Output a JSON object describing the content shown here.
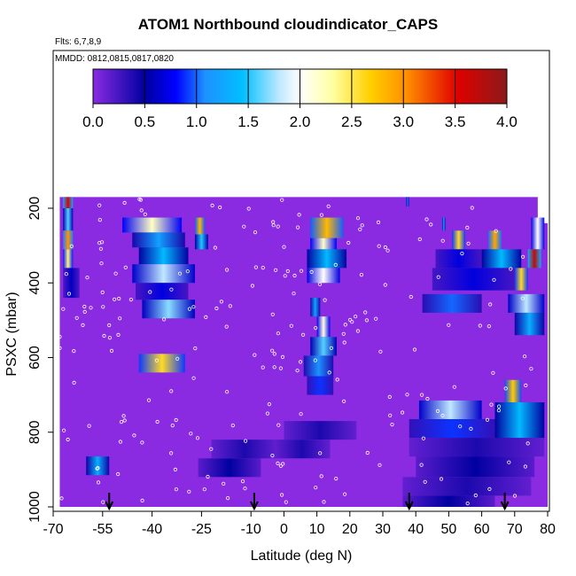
{
  "title": "ATOM1 Northbound cloudindicator_CAPS",
  "flights_note": "Flts: 6,7,8,9",
  "dates_note": "MMDD: 0812,0815,0817,0820",
  "chart_data": {
    "type": "heatmap",
    "title": "ATOM1 Northbound cloudindicator_CAPS",
    "xlabel": "Latitude (deg N)",
    "ylabel": "PSXC (mbar)",
    "xlim": [
      -70,
      80
    ],
    "ylim": [
      1000,
      100
    ],
    "x_ticks": [
      "-70",
      "-55",
      "-40",
      "-25",
      "-10",
      "0",
      "10",
      "20",
      "30",
      "40",
      "50",
      "60",
      "70",
      "80"
    ],
    "y_ticks": [
      "200",
      "400",
      "600",
      "800",
      "1000"
    ],
    "colorbar": {
      "min": 0.0,
      "max": 4.0,
      "ticks": [
        "0.0",
        "0.5",
        "1.0",
        "1.5",
        "2.0",
        "2.5",
        "3.0",
        "3.5",
        "4.0"
      ]
    },
    "arrow_latitudes": [
      -53,
      -9,
      38,
      67
    ],
    "background_value": 0.0,
    "cells": [
      {
        "lat": [
          -67,
          -64
        ],
        "p": [
          170,
          200
        ],
        "v": 3.6
      },
      {
        "lat": [
          -67,
          -64
        ],
        "p": [
          200,
          260
        ],
        "v": 1.6
      },
      {
        "lat": [
          -67,
          -64
        ],
        "p": [
          260,
          310
        ],
        "v": 3.0
      },
      {
        "lat": [
          -67,
          -64
        ],
        "p": [
          310,
          360
        ],
        "v": 2.4
      },
      {
        "lat": [
          -67,
          -62
        ],
        "p": [
          360,
          440
        ],
        "v": 0.6
      },
      {
        "lat": [
          -60,
          -53
        ],
        "p": [
          865,
          915
        ],
        "v": 1.3
      },
      {
        "lat": [
          -49,
          -31
        ],
        "p": [
          225,
          265
        ],
        "v": 2.2
      },
      {
        "lat": [
          -46,
          -30
        ],
        "p": [
          265,
          305
        ],
        "v": 1.2
      },
      {
        "lat": [
          -44,
          -29
        ],
        "p": [
          305,
          350
        ],
        "v": 1.4
      },
      {
        "lat": [
          -46,
          -27
        ],
        "p": [
          350,
          400
        ],
        "v": 1.8
      },
      {
        "lat": [
          -45,
          -29
        ],
        "p": [
          400,
          445
        ],
        "v": 0.7
      },
      {
        "lat": [
          -43,
          -27
        ],
        "p": [
          445,
          495
        ],
        "v": 1.7
      },
      {
        "lat": [
          -44,
          -30
        ],
        "p": [
          590,
          640
        ],
        "v": 2.6
      },
      {
        "lat": [
          -27,
          -24
        ],
        "p": [
          225,
          270
        ],
        "v": 2.8
      },
      {
        "lat": [
          -27,
          -23
        ],
        "p": [
          270,
          310
        ],
        "v": 1.5
      },
      {
        "lat": [
          -26,
          -7
        ],
        "p": [
          870,
          920
        ],
        "v": 0.5
      },
      {
        "lat": [
          -22,
          -2
        ],
        "p": [
          820,
          870
        ],
        "v": 0.4
      },
      {
        "lat": [
          8,
          18
        ],
        "p": [
          225,
          280
        ],
        "v": 2.8
      },
      {
        "lat": [
          8,
          16
        ],
        "p": [
          280,
          310
        ],
        "v": 2.2
      },
      {
        "lat": [
          7,
          19
        ],
        "p": [
          310,
          360
        ],
        "v": 1.4
      },
      {
        "lat": [
          7,
          17
        ],
        "p": [
          360,
          400
        ],
        "v": 2.0
      },
      {
        "lat": [
          8,
          11
        ],
        "p": [
          440,
          490
        ],
        "v": 1.2
      },
      {
        "lat": [
          10,
          14
        ],
        "p": [
          490,
          545
        ],
        "v": 2.1
      },
      {
        "lat": [
          8,
          16
        ],
        "p": [
          545,
          595
        ],
        "v": 1.6
      },
      {
        "lat": [
          6,
          15
        ],
        "p": [
          595,
          650
        ],
        "v": 1.1
      },
      {
        "lat": [
          7,
          15
        ],
        "p": [
          650,
          700
        ],
        "v": 0.9
      },
      {
        "lat": [
          0,
          22
        ],
        "p": [
          770,
          820
        ],
        "v": 0.4
      },
      {
        "lat": [
          -3,
          14
        ],
        "p": [
          820,
          870
        ],
        "v": 0.4
      },
      {
        "lat": [
          37,
          38
        ],
        "p": [
          170,
          195
        ],
        "v": 1.0
      },
      {
        "lat": [
          48,
          49
        ],
        "p": [
          225,
          260
        ],
        "v": 1.2
      },
      {
        "lat": [
          51,
          55
        ],
        "p": [
          260,
          310
        ],
        "v": 2.6
      },
      {
        "lat": [
          62,
          66
        ],
        "p": [
          260,
          310
        ],
        "v": 2.9
      },
      {
        "lat": [
          75,
          79
        ],
        "p": [
          225,
          310
        ],
        "v": 2.0
      },
      {
        "lat": [
          74,
          78
        ],
        "p": [
          310,
          360
        ],
        "v": 3.7
      },
      {
        "lat": [
          46,
          60
        ],
        "p": [
          310,
          360
        ],
        "v": 0.7
      },
      {
        "lat": [
          60,
          72
        ],
        "p": [
          310,
          360
        ],
        "v": 1.4
      },
      {
        "lat": [
          45,
          70
        ],
        "p": [
          360,
          420
        ],
        "v": 0.7
      },
      {
        "lat": [
          70,
          74
        ],
        "p": [
          360,
          420
        ],
        "v": 2.6
      },
      {
        "lat": [
          42,
          60
        ],
        "p": [
          430,
          480
        ],
        "v": 1.0
      },
      {
        "lat": [
          68,
          79
        ],
        "p": [
          430,
          480
        ],
        "v": 1.8
      },
      {
        "lat": [
          70,
          79
        ],
        "p": [
          480,
          540
        ],
        "v": 1.3
      },
      {
        "lat": [
          67,
          72
        ],
        "p": [
          660,
          720
        ],
        "v": 2.7
      },
      {
        "lat": [
          41,
          60
        ],
        "p": [
          715,
          765
        ],
        "v": 1.8
      },
      {
        "lat": [
          38,
          64
        ],
        "p": [
          765,
          815
        ],
        "v": 0.9
      },
      {
        "lat": [
          64,
          79
        ],
        "p": [
          720,
          820
        ],
        "v": 1.4
      },
      {
        "lat": [
          38,
          79
        ],
        "p": [
          815,
          865
        ],
        "v": 0.4
      },
      {
        "lat": [
          40,
          76
        ],
        "p": [
          865,
          920
        ],
        "v": 0.5
      },
      {
        "lat": [
          36,
          75
        ],
        "p": [
          920,
          970
        ],
        "v": 0.4
      },
      {
        "lat": [
          36,
          64
        ],
        "p": [
          970,
          1000
        ],
        "v": 0.5
      }
    ]
  }
}
